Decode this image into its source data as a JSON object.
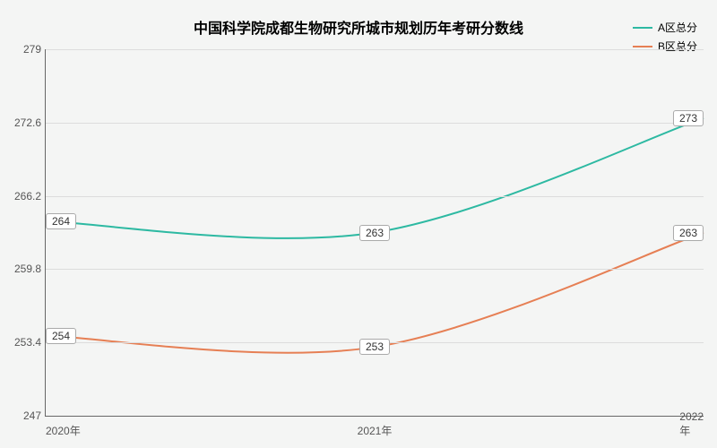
{
  "chart": {
    "type": "line",
    "title": "中国科学院成都生物研究所城市规划历年考研分数线",
    "title_fontsize": 16,
    "background_color": "#f4f5f4",
    "grid_color": "#dcdcdc",
    "axis_color": "#666666",
    "label_fontsize": 12,
    "tick_fontsize": 12,
    "point_label_fontsize": 12,
    "x_labels": [
      "2020年",
      "2021年",
      "2022年"
    ],
    "x_positions_pct": [
      0,
      50,
      100
    ],
    "ylim": [
      247,
      279
    ],
    "y_ticks": [
      247,
      253.4,
      259.8,
      266.2,
      272.6,
      279
    ],
    "series": [
      {
        "name": "A区总分",
        "color": "#2db9a2",
        "line_width": 2,
        "values": [
          264,
          263,
          273
        ]
      },
      {
        "name": "B区总分",
        "color": "#e67f54",
        "line_width": 2,
        "values": [
          254,
          253,
          263
        ]
      }
    ],
    "point_label_bg": "#ffffff",
    "point_label_border": "#aaaaaa"
  }
}
